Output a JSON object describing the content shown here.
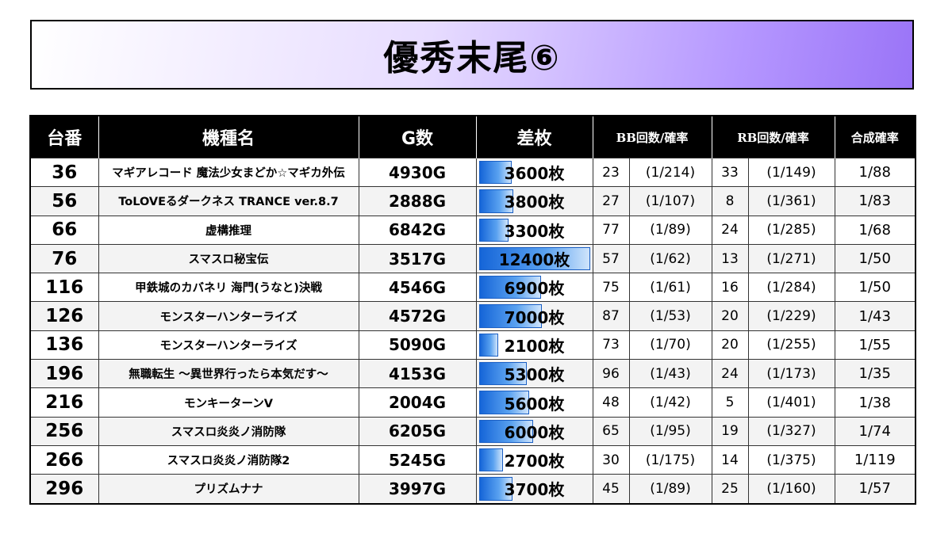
{
  "title": "優秀末尾⑥",
  "headers": {
    "machine_no": "台番",
    "machine_name": "機種名",
    "games": "G数",
    "diff": "差枚",
    "bb": "BB回数/確率",
    "rb": "RB回数/確率",
    "combined": "合成確率"
  },
  "rows": [
    {
      "no": "36",
      "name": "マギアレコード 魔法少女まどか☆マギカ外伝",
      "games": "4930G",
      "diff": "3600枚",
      "diff_value": 3600,
      "bb_count": "23",
      "bb_prob": "(1/214)",
      "rb_count": "33",
      "rb_prob": "(1/149)",
      "combined": "1/88"
    },
    {
      "no": "56",
      "name": "ToLOVEるダークネス TRANCE ver.8.7",
      "games": "2888G",
      "diff": "3800枚",
      "diff_value": 3800,
      "bb_count": "27",
      "bb_prob": "(1/107)",
      "rb_count": "8",
      "rb_prob": "(1/361)",
      "combined": "1/83"
    },
    {
      "no": "66",
      "name": "虚構推理",
      "games": "6842G",
      "diff": "3300枚",
      "diff_value": 3300,
      "bb_count": "77",
      "bb_prob": "(1/89)",
      "rb_count": "24",
      "rb_prob": "(1/285)",
      "combined": "1/68"
    },
    {
      "no": "76",
      "name": "スマスロ秘宝伝",
      "games": "3517G",
      "diff": "12400枚",
      "diff_value": 12400,
      "bb_count": "57",
      "bb_prob": "(1/62)",
      "rb_count": "13",
      "rb_prob": "(1/271)",
      "combined": "1/50"
    },
    {
      "no": "116",
      "name": "甲鉄城のカバネリ 海門(うなと)決戦",
      "games": "4546G",
      "diff": "6900枚",
      "diff_value": 6900,
      "bb_count": "75",
      "bb_prob": "(1/61)",
      "rb_count": "16",
      "rb_prob": "(1/284)",
      "combined": "1/50"
    },
    {
      "no": "126",
      "name": "モンスターハンターライズ",
      "games": "4572G",
      "diff": "7000枚",
      "diff_value": 7000,
      "bb_count": "87",
      "bb_prob": "(1/53)",
      "rb_count": "20",
      "rb_prob": "(1/229)",
      "combined": "1/43"
    },
    {
      "no": "136",
      "name": "モンスターハンターライズ",
      "games": "5090G",
      "diff": "2100枚",
      "diff_value": 2100,
      "bb_count": "73",
      "bb_prob": "(1/70)",
      "rb_count": "20",
      "rb_prob": "(1/255)",
      "combined": "1/55"
    },
    {
      "no": "196",
      "name": "無職転生 ～異世界行ったら本気だす～",
      "games": "4153G",
      "diff": "5300枚",
      "diff_value": 5300,
      "bb_count": "96",
      "bb_prob": "(1/43)",
      "rb_count": "24",
      "rb_prob": "(1/173)",
      "combined": "1/35"
    },
    {
      "no": "216",
      "name": "モンキーターンV",
      "games": "2004G",
      "diff": "5600枚",
      "diff_value": 5600,
      "bb_count": "48",
      "bb_prob": "(1/42)",
      "rb_count": "5",
      "rb_prob": "(1/401)",
      "combined": "1/38"
    },
    {
      "no": "256",
      "name": "スマスロ炎炎ノ消防隊",
      "games": "6205G",
      "diff": "6000枚",
      "diff_value": 6000,
      "bb_count": "65",
      "bb_prob": "(1/95)",
      "rb_count": "19",
      "rb_prob": "(1/327)",
      "combined": "1/74"
    },
    {
      "no": "266",
      "name": "スマスロ炎炎ノ消防隊2",
      "games": "5245G",
      "diff": "2700枚",
      "diff_value": 2700,
      "bb_count": "30",
      "bb_prob": "(1/175)",
      "rb_count": "14",
      "rb_prob": "(1/375)",
      "combined": "1/119"
    },
    {
      "no": "296",
      "name": "プリズムナナ",
      "games": "3997G",
      "diff": "3700枚",
      "diff_value": 3700,
      "bb_count": "45",
      "bb_prob": "(1/89)",
      "rb_count": "25",
      "rb_prob": "(1/160)",
      "combined": "1/57"
    }
  ],
  "colors": {
    "header_bg": "#000000",
    "bar_blue": "#1565d8",
    "title_gradient_end": "#9a74f7"
  }
}
